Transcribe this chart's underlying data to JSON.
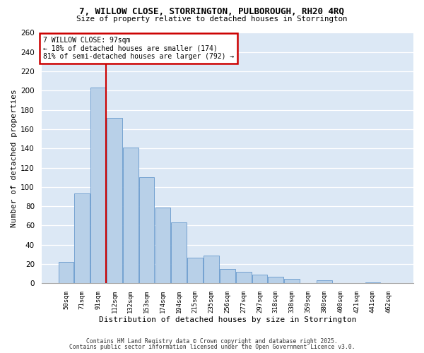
{
  "title": "7, WILLOW CLOSE, STORRINGTON, PULBOROUGH, RH20 4RQ",
  "subtitle": "Size of property relative to detached houses in Storrington",
  "xlabel": "Distribution of detached houses by size in Storrington",
  "ylabel": "Number of detached properties",
  "bar_labels": [
    "50sqm",
    "71sqm",
    "91sqm",
    "112sqm",
    "132sqm",
    "153sqm",
    "174sqm",
    "194sqm",
    "215sqm",
    "235sqm",
    "256sqm",
    "277sqm",
    "297sqm",
    "318sqm",
    "338sqm",
    "359sqm",
    "380sqm",
    "400sqm",
    "421sqm",
    "441sqm",
    "462sqm"
  ],
  "bar_values": [
    22,
    93,
    203,
    172,
    141,
    110,
    79,
    63,
    27,
    29,
    15,
    12,
    9,
    7,
    5,
    0,
    3,
    0,
    0,
    1,
    0
  ],
  "bar_color": "#b8d0e8",
  "bar_edge_color": "#6699cc",
  "background_color": "#dce8f5",
  "grid_color": "#ffffff",
  "annotation_box_edge_color": "#cc0000",
  "annotation_text_line1": "7 WILLOW CLOSE: 97sqm",
  "annotation_text_line2": "← 18% of detached houses are smaller (174)",
  "annotation_text_line3": "81% of semi-detached houses are larger (792) →",
  "ylim": [
    0,
    260
  ],
  "yticks": [
    0,
    20,
    40,
    60,
    80,
    100,
    120,
    140,
    160,
    180,
    200,
    220,
    240,
    260
  ],
  "fig_bg": "#ffffff",
  "footnote1": "Contains HM Land Registry data © Crown copyright and database right 2025.",
  "footnote2": "Contains public sector information licensed under the Open Government Licence v3.0."
}
